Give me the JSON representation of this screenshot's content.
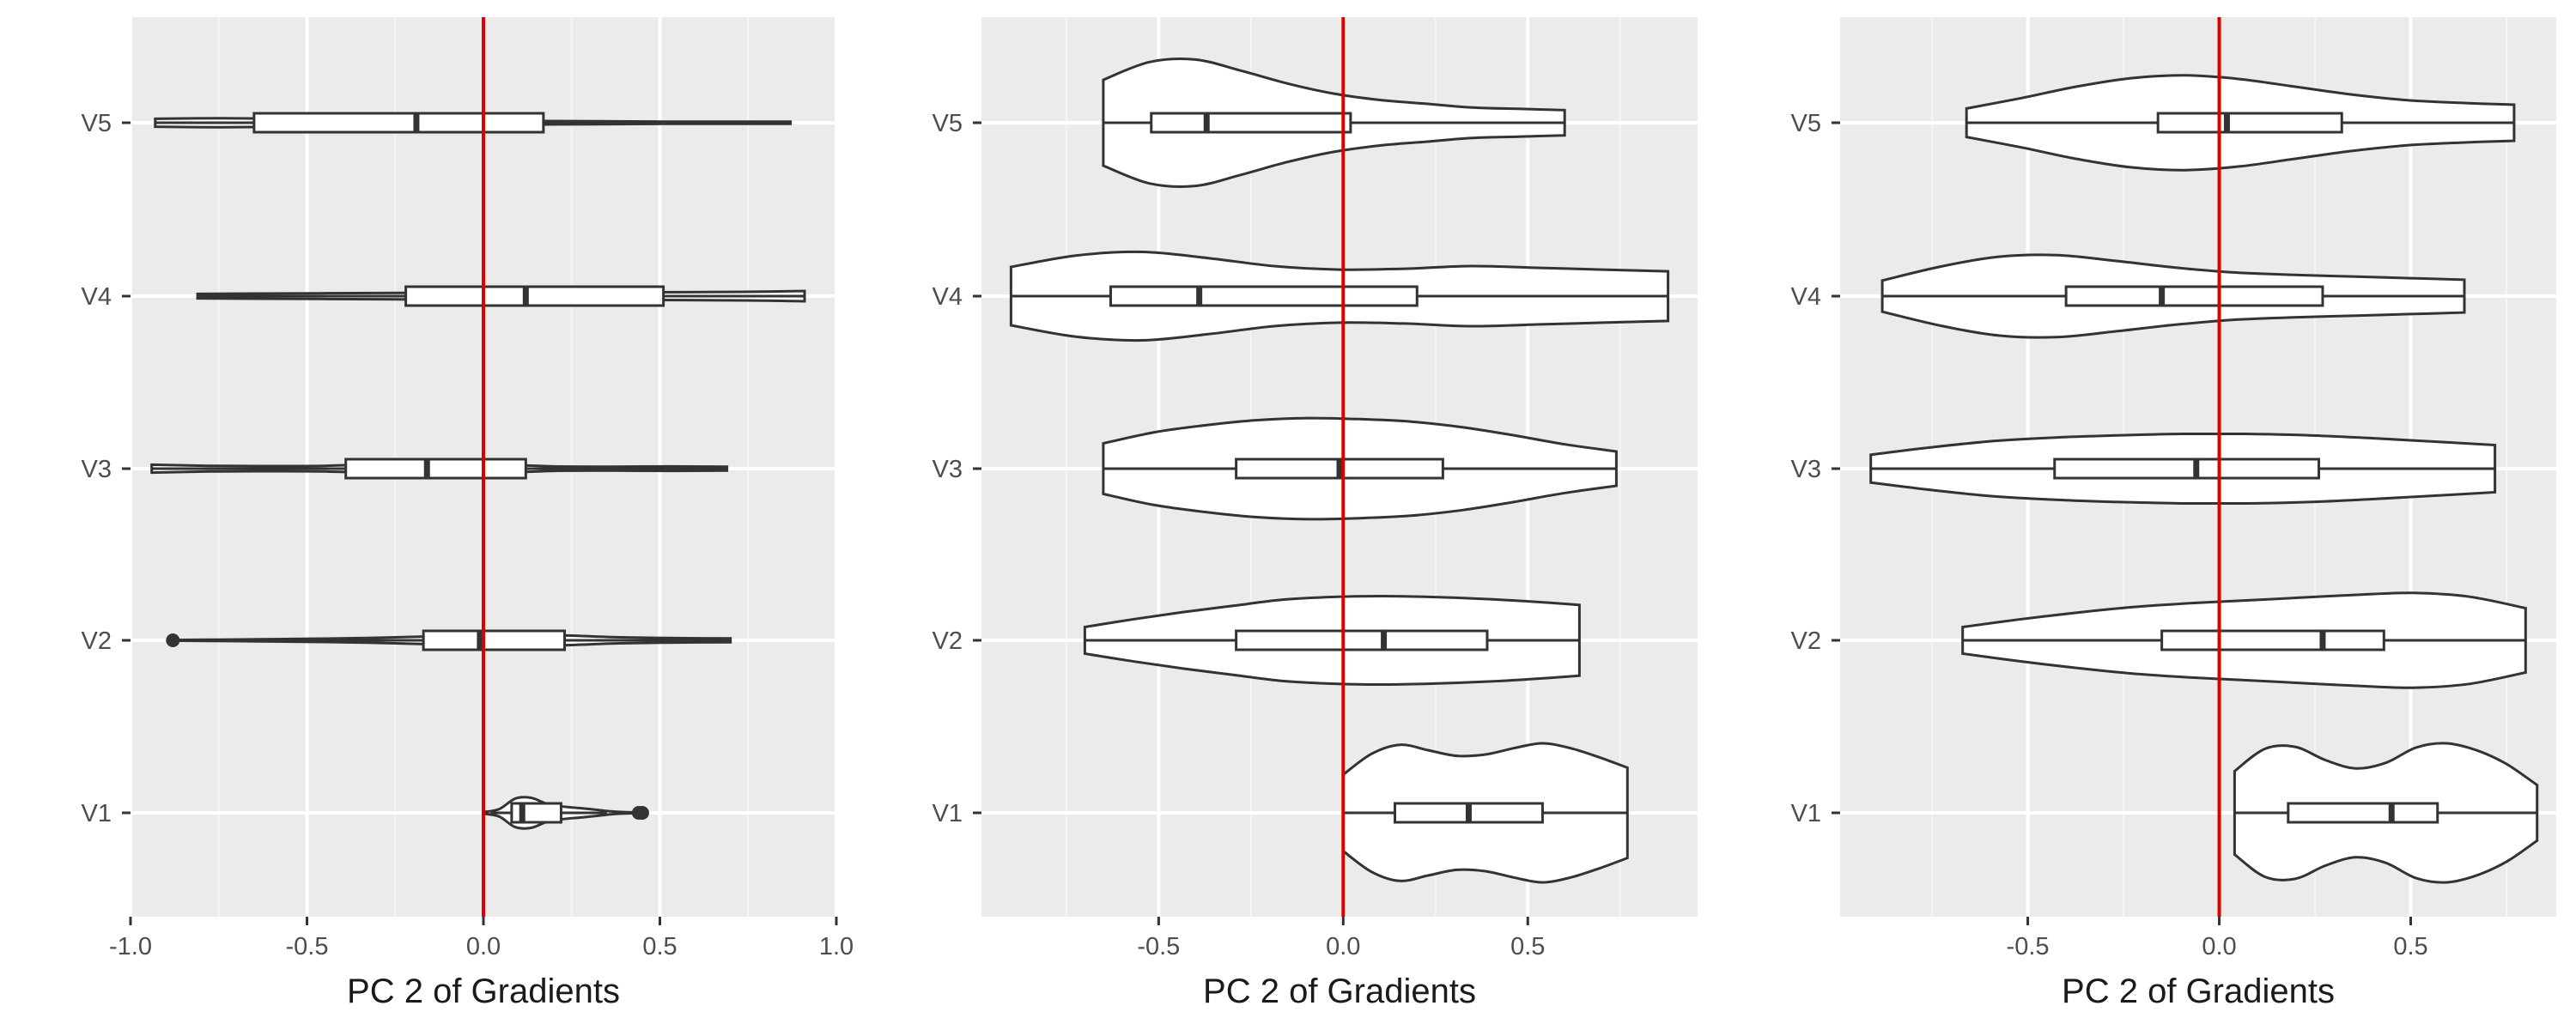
{
  "colors": {
    "panel_bg": "#ebebeb",
    "grid_major": "#ffffff",
    "grid_minor": "#f5f5f5",
    "outline": "#333333",
    "violin_fill": "#ffffff",
    "ref_line": "#dd0000",
    "tick_text": "#4d4d4d",
    "title_text": "#1a1a1a"
  },
  "chart_data": [
    {
      "type": "violin",
      "xlabel": "PC 2 of Gradients",
      "categories": [
        "V1",
        "V2",
        "V3",
        "V4",
        "V5"
      ],
      "xlim": [
        -1.0,
        1.0
      ],
      "xticks": [
        -1.0,
        -0.5,
        0.0,
        0.5,
        1.0
      ],
      "xtick_labels": [
        "-1.0",
        "-0.5",
        "0.0",
        "0.5",
        "1.0"
      ],
      "reference_line_x": 0.0,
      "grid": true,
      "violins": [
        {
          "category": "V1",
          "min": 0.0,
          "max": 0.45,
          "peak": 0.095,
          "density": [
            0.05,
            0.25,
            0.95,
            1.0,
            0.6,
            0.42,
            0.32,
            0.22,
            0.1,
            0.04,
            0.02
          ],
          "box": {
            "whisker_low": 0.02,
            "q1": 0.08,
            "median": 0.11,
            "q3": 0.22,
            "whisker_high": 0.35
          },
          "outliers": [
            0.44,
            0.45
          ]
        },
        {
          "category": "V2",
          "min": -0.88,
          "max": 0.7,
          "peak": 0.12,
          "density": [
            0.02,
            0.04,
            0.07,
            0.1,
            0.16,
            0.24,
            0.3,
            0.26,
            0.16,
            0.12,
            0.1
          ],
          "box": {
            "whisker_low": -0.72,
            "q1": -0.17,
            "median": -0.01,
            "q3": 0.23,
            "whisker_high": 0.7
          },
          "outliers": [
            -0.88
          ]
        },
        {
          "category": "V3",
          "min": -0.94,
          "max": 0.69,
          "peak": 0.18,
          "density": [
            0.14,
            0.1,
            0.09,
            0.1,
            0.16,
            0.2,
            0.15,
            0.08,
            0.07,
            0.08,
            0.07
          ],
          "box": {
            "whisker_low": -0.94,
            "q1": -0.39,
            "median": -0.16,
            "q3": 0.12,
            "whisker_high": 0.69
          },
          "outliers": []
        },
        {
          "category": "V4",
          "min": -0.81,
          "max": 0.91,
          "peak": 0.18,
          "density": [
            0.08,
            0.09,
            0.1,
            0.11,
            0.12,
            0.12,
            0.13,
            0.13,
            0.14,
            0.15,
            0.18
          ],
          "box": {
            "whisker_low": -0.81,
            "q1": -0.22,
            "median": 0.12,
            "q3": 0.51,
            "whisker_high": 0.91
          },
          "outliers": []
        },
        {
          "category": "V5",
          "min": -0.93,
          "max": 0.87,
          "peak": 0.18,
          "density": [
            0.14,
            0.16,
            0.14,
            0.12,
            0.1,
            0.08,
            0.06,
            0.05,
            0.04,
            0.04,
            0.04
          ],
          "box": {
            "whisker_low": -0.93,
            "q1": -0.65,
            "median": -0.19,
            "q3": 0.17,
            "whisker_high": 0.87
          },
          "outliers": []
        }
      ]
    },
    {
      "type": "violin",
      "xlabel": "PC 2 of Gradients",
      "categories": [
        "V1",
        "V2",
        "V3",
        "V4",
        "V5"
      ],
      "xlim": [
        -0.98,
        0.96
      ],
      "xticks": [
        -0.5,
        0.0,
        0.5
      ],
      "xtick_labels": [
        "-0.5",
        "0.0",
        "0.5"
      ],
      "reference_line_x": 0.0,
      "grid": true,
      "violins": [
        {
          "category": "V1",
          "min": 0.0,
          "max": 0.77,
          "peak": 0.44,
          "density": [
            0.55,
            0.85,
            0.98,
            0.9,
            0.82,
            0.84,
            0.93,
            1.0,
            0.93,
            0.8,
            0.65
          ],
          "box": {
            "whisker_low": 0.0,
            "q1": 0.14,
            "median": 0.34,
            "q3": 0.54,
            "whisker_high": 0.77
          },
          "outliers": []
        },
        {
          "category": "V2",
          "min": -0.7,
          "max": 0.64,
          "peak": 0.28,
          "density": [
            0.3,
            0.48,
            0.64,
            0.78,
            0.92,
            0.98,
            1.0,
            0.98,
            0.94,
            0.88,
            0.8
          ],
          "box": {
            "whisker_low": -0.7,
            "q1": -0.29,
            "median": 0.11,
            "q3": 0.39,
            "whisker_high": 0.64
          },
          "outliers": []
        },
        {
          "category": "V3",
          "min": -0.65,
          "max": 0.74,
          "peak": 0.32,
          "density": [
            0.5,
            0.72,
            0.86,
            0.96,
            1.0,
            0.98,
            0.93,
            0.82,
            0.66,
            0.48,
            0.34
          ],
          "box": {
            "whisker_low": -0.65,
            "q1": -0.29,
            "median": -0.01,
            "q3": 0.27,
            "whisker_high": 0.74
          },
          "outliers": []
        },
        {
          "category": "V4",
          "min": -0.9,
          "max": 0.88,
          "peak": 0.28,
          "density": [
            0.66,
            0.92,
            1.0,
            0.86,
            0.68,
            0.6,
            0.62,
            0.68,
            0.64,
            0.6,
            0.56
          ],
          "box": {
            "whisker_low": -0.9,
            "q1": -0.63,
            "median": -0.39,
            "q3": 0.2,
            "whisker_high": 0.88
          },
          "outliers": []
        },
        {
          "category": "V5",
          "min": -0.65,
          "max": 0.6,
          "peak": 0.4,
          "density": [
            0.68,
            0.96,
            1.0,
            0.82,
            0.62,
            0.46,
            0.36,
            0.3,
            0.24,
            0.22,
            0.2
          ],
          "box": {
            "whisker_low": -0.65,
            "q1": -0.52,
            "median": -0.37,
            "q3": 0.02,
            "whisker_high": 0.6
          },
          "outliers": []
        }
      ]
    },
    {
      "type": "violin",
      "xlabel": "PC 2 of Gradients",
      "categories": [
        "V1",
        "V2",
        "V3",
        "V4",
        "V5"
      ],
      "xlim": [
        -0.99,
        0.88
      ],
      "xticks": [
        -0.5,
        0.0,
        0.5
      ],
      "xtick_labels": [
        "-0.5",
        "0.0",
        "0.5"
      ],
      "reference_line_x": 0.0,
      "grid": true,
      "violins": [
        {
          "category": "V1",
          "min": 0.04,
          "max": 0.83,
          "peak": 0.44,
          "density": [
            0.6,
            0.92,
            0.95,
            0.76,
            0.64,
            0.72,
            0.94,
            1.0,
            0.9,
            0.7,
            0.4
          ],
          "box": {
            "whisker_low": 0.04,
            "q1": 0.18,
            "median": 0.45,
            "q3": 0.57,
            "whisker_high": 0.83
          },
          "outliers": []
        },
        {
          "category": "V2",
          "min": -0.67,
          "max": 0.8,
          "peak": 0.3,
          "density": [
            0.28,
            0.44,
            0.58,
            0.7,
            0.78,
            0.84,
            0.9,
            0.96,
            1.0,
            0.92,
            0.68
          ],
          "box": {
            "whisker_low": -0.67,
            "q1": -0.15,
            "median": 0.27,
            "q3": 0.43,
            "whisker_high": 0.8
          },
          "outliers": []
        },
        {
          "category": "V3",
          "min": -0.91,
          "max": 0.72,
          "peak": 0.22,
          "density": [
            0.4,
            0.62,
            0.8,
            0.9,
            0.96,
            1.0,
            1.0,
            0.96,
            0.88,
            0.78,
            0.68
          ],
          "box": {
            "whisker_low": -0.91,
            "q1": -0.43,
            "median": -0.06,
            "q3": 0.26,
            "whisker_high": 0.72
          },
          "outliers": []
        },
        {
          "category": "V4",
          "min": -0.88,
          "max": 0.64,
          "peak": 0.26,
          "density": [
            0.38,
            0.72,
            0.96,
            1.0,
            0.86,
            0.7,
            0.58,
            0.52,
            0.48,
            0.44,
            0.4
          ],
          "box": {
            "whisker_low": -0.88,
            "q1": -0.4,
            "median": -0.15,
            "q3": 0.27,
            "whisker_high": 0.64
          },
          "outliers": []
        },
        {
          "category": "V5",
          "min": -0.66,
          "max": 0.77,
          "peak": 0.3,
          "density": [
            0.3,
            0.52,
            0.76,
            0.94,
            1.0,
            0.92,
            0.76,
            0.6,
            0.48,
            0.42,
            0.38
          ],
          "box": {
            "whisker_low": -0.66,
            "q1": -0.16,
            "median": 0.02,
            "q3": 0.32,
            "whisker_high": 0.77
          },
          "outliers": []
        }
      ]
    }
  ]
}
